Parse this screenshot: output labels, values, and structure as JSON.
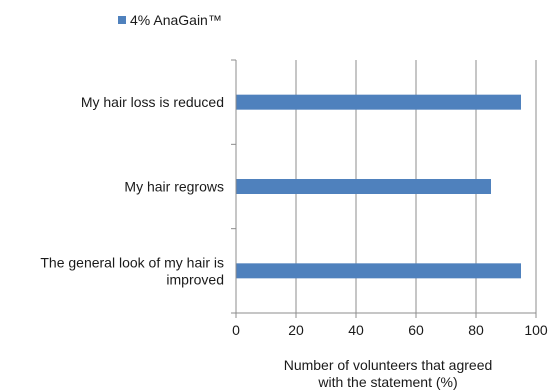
{
  "chart_data": {
    "type": "bar",
    "orientation": "horizontal",
    "categories": [
      [
        "My hair loss is reduced"
      ],
      [
        "My hair regrows"
      ],
      [
        "The general look of my hair is",
        "improved"
      ]
    ],
    "series": [
      {
        "name": "4% AnaGain™",
        "values": [
          95,
          85,
          95
        ],
        "color": "#4f81bd"
      }
    ],
    "xlabel": [
      "Number of volunteers that agreed",
      "with the statement (%)"
    ],
    "ylabel": "",
    "xlim": [
      0,
      100
    ],
    "xticks": [
      "0",
      "20",
      "40",
      "60",
      "80",
      "100"
    ],
    "grid": true,
    "legend_position": "top-left"
  }
}
